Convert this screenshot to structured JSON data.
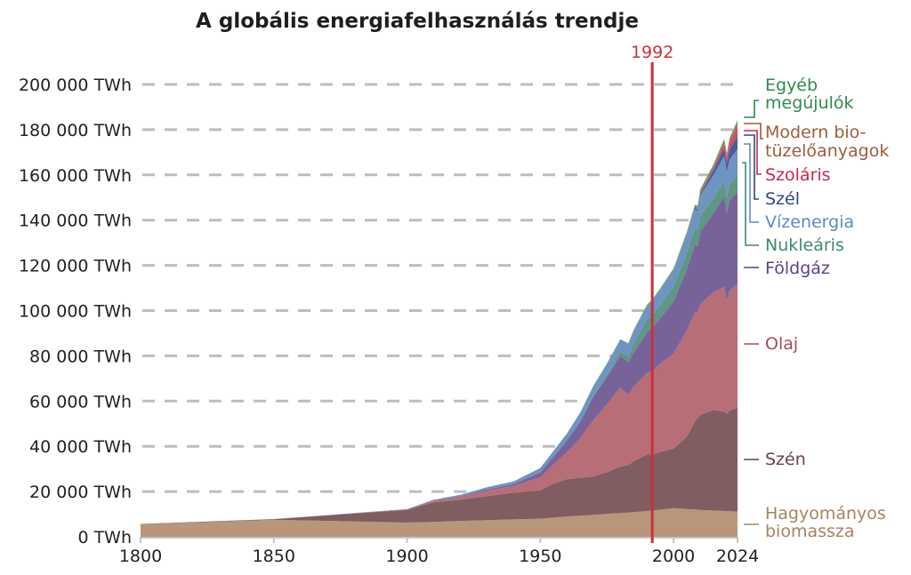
{
  "chart_data": {
    "type": "area",
    "stacked": true,
    "title": "A globális energiafelhasználás trendje",
    "xlabel": "",
    "ylabel": "",
    "xlim": [
      1800,
      2024
    ],
    "ylim": [
      0,
      200000
    ],
    "grid": true,
    "x_ticks": [
      "1800",
      "1850",
      "1900",
      "1950",
      "2000",
      "2024"
    ],
    "x_tick_values": [
      1800,
      1850,
      1900,
      1950,
      2000,
      2024
    ],
    "y_ticks": [
      "0 TWh",
      "20 000 TWh",
      "40 000 TWh",
      "60 000 TWh",
      "80 000 TWh",
      "100 000 TWh",
      "120 000 TWh",
      "140 000 TWh",
      "160 000 TWh",
      "180 000 TWh",
      "200 000 TWh"
    ],
    "y_tick_values": [
      0,
      20000,
      40000,
      60000,
      80000,
      100000,
      120000,
      140000,
      160000,
      180000,
      200000
    ],
    "annotation": {
      "label": "1992",
      "x": 1992,
      "color": "#c8323a"
    },
    "x": [
      1800,
      1850,
      1900,
      1910,
      1920,
      1930,
      1940,
      1950,
      1955,
      1960,
      1965,
      1970,
      1975,
      1980,
      1983,
      1985,
      1990,
      1992,
      1995,
      2000,
      2005,
      2008,
      2009,
      2010,
      2015,
      2019,
      2020,
      2021,
      2024
    ],
    "series": [
      {
        "name": "Hagyományos biomassza",
        "label_lines": [
          "Hagyományos",
          "biomassza"
        ],
        "color": "#b8967a",
        "label_color": "#a8835f",
        "values": [
          5600,
          7500,
          6300,
          6600,
          7000,
          7400,
          7700,
          8000,
          8500,
          9000,
          9300,
          9700,
          10100,
          10500,
          10700,
          10900,
          11400,
          11600,
          12000,
          12700,
          12300,
          12100,
          12000,
          11900,
          11600,
          11400,
          11400,
          11300,
          11200
        ]
      },
      {
        "name": "Szén",
        "label_lines": [
          "Szén"
        ],
        "color": "#7f5d61",
        "label_color": "#6e3e48",
        "values": [
          100,
          300,
          5600,
          8600,
          9400,
          10600,
          11800,
          12500,
          15000,
          16500,
          16800,
          17000,
          18500,
          20500,
          21000,
          22500,
          25000,
          24700,
          25500,
          26300,
          32000,
          39000,
          40500,
          42000,
          44500,
          44000,
          43000,
          44500,
          45800
        ]
      },
      {
        "name": "Olaj",
        "label_lines": [
          "Olaj"
        ],
        "color": "#b76e76",
        "label_color": "#a34c5c",
        "values": [
          0,
          0,
          200,
          700,
          1300,
          2400,
          3000,
          5800,
          8500,
          12000,
          17500,
          25000,
          30000,
          35000,
          31000,
          33000,
          36000,
          37000,
          39000,
          42000,
          47000,
          48000,
          47000,
          49000,
          52000,
          55000,
          50000,
          53000,
          55000
        ]
      },
      {
        "name": "Földgáz",
        "label_lines": [
          "Földgáz"
        ],
        "color": "#77639a",
        "label_color": "#5d3f8e",
        "values": [
          0,
          0,
          100,
          200,
          300,
          600,
          800,
          2200,
          3500,
          5000,
          7500,
          10500,
          12000,
          14000,
          14500,
          15000,
          18000,
          19000,
          20000,
          23000,
          27000,
          30000,
          29000,
          32000,
          35000,
          40000,
          39000,
          40000,
          40500
        ]
      },
      {
        "name": "Nukleáris",
        "label_lines": [
          "Nukleáris"
        ],
        "color": "#5f9684",
        "label_color": "#3f8a6c",
        "values": [
          0,
          0,
          0,
          0,
          0,
          0,
          0,
          0,
          0,
          0,
          100,
          300,
          1000,
          1800,
          2500,
          4000,
          5500,
          5700,
          6000,
          6700,
          7200,
          7200,
          7000,
          7000,
          6700,
          7100,
          6800,
          7000,
          7300
        ]
      },
      {
        "name": "Vízenergia",
        "label_lines": [
          "Vízenergia"
        ],
        "color": "#6d94c2",
        "label_color": "#5b8ac6",
        "values": [
          0,
          0,
          100,
          300,
          600,
          900,
          1200,
          1900,
          2500,
          3200,
          3700,
          4300,
          4800,
          5200,
          5400,
          5500,
          6000,
          6200,
          6500,
          7000,
          8000,
          8500,
          8400,
          9000,
          10200,
          10800,
          11000,
          11000,
          11500
        ]
      },
      {
        "name": "Szél",
        "label_lines": [
          "Szél"
        ],
        "color": "#4a5d9c",
        "label_color": "#2f468c",
        "values": [
          0,
          0,
          0,
          0,
          0,
          0,
          0,
          0,
          0,
          0,
          0,
          0,
          0,
          0,
          0,
          0,
          10,
          20,
          30,
          100,
          300,
          600,
          800,
          900,
          2100,
          3600,
          4000,
          4400,
          5800
        ]
      },
      {
        "name": "Szoláris",
        "label_lines": [
          "Szoláris"
        ],
        "color": "#d64a62",
        "label_color": "#c8284e",
        "values": [
          0,
          0,
          0,
          0,
          0,
          0,
          0,
          0,
          0,
          0,
          0,
          0,
          0,
          0,
          0,
          0,
          0,
          0,
          0,
          0,
          10,
          40,
          60,
          100,
          700,
          1900,
          2300,
          2700,
          4700
        ]
      },
      {
        "name": "Modern bio-tüzelőanyagok",
        "label_lines": [
          "Modern bio-",
          "tüzelőanyagok"
        ],
        "color": "#a77250",
        "label_color": "#9b5e3a",
        "values": [
          0,
          0,
          0,
          0,
          0,
          0,
          0,
          0,
          0,
          0,
          0,
          0,
          0,
          50,
          80,
          100,
          150,
          160,
          200,
          250,
          400,
          600,
          700,
          800,
          950,
          1100,
          1050,
          1150,
          1300
        ]
      },
      {
        "name": "Egyéb megújulók",
        "label_lines": [
          "Egyéb",
          "megújulók"
        ],
        "color": "#4ea15f",
        "label_color": "#2e8b4e",
        "values": [
          0,
          0,
          0,
          0,
          0,
          0,
          0,
          0,
          0,
          0,
          100,
          150,
          200,
          300,
          350,
          400,
          500,
          520,
          550,
          600,
          700,
          750,
          780,
          800,
          900,
          1000,
          1000,
          1050,
          1150
        ]
      }
    ]
  }
}
